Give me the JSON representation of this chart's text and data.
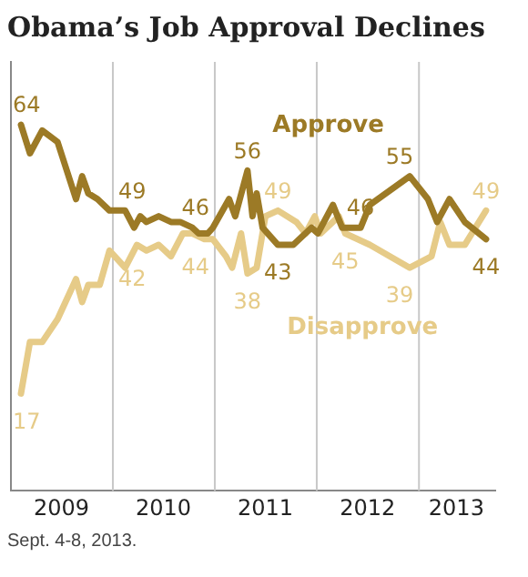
{
  "chart_data": {
    "type": "line",
    "title": "Obama’s Job Approval Declines",
    "xlim": [
      "2009-01-01",
      "2013-10-01"
    ],
    "ylim": [
      0,
      75
    ],
    "xticks": [
      {
        "value": "2009-07-01",
        "label": "2009"
      },
      {
        "value": "2010-07-01",
        "label": "2010"
      },
      {
        "value": "2011-07-01",
        "label": "2011"
      },
      {
        "value": "2012-07-01",
        "label": "2012"
      },
      {
        "value": "2013-05-15",
        "label": "2013"
      }
    ],
    "tick_labels": "x",
    "grid": false,
    "legend": false,
    "marker": "none",
    "line_style": "solid",
    "ref_lines": [
      {
        "axis": "x",
        "value": "2010-01-01",
        "color": "#c8c8c8"
      },
      {
        "axis": "x",
        "value": "2011-01-01",
        "color": "#c8c8c8"
      },
      {
        "axis": "x",
        "value": "2012-01-01",
        "color": "#c8c8c8"
      },
      {
        "axis": "x",
        "value": "2013-01-01",
        "color": "#c8c8c8"
      }
    ],
    "series": [
      {
        "name": "Approve",
        "color": "#9c7a26",
        "x": [
          "2009-02-06",
          "2009-03-10",
          "2009-04-23",
          "2009-06-17",
          "2009-08-22",
          "2009-09-13",
          "2009-10-05",
          "2009-11-07",
          "2009-12-20",
          "2010-02-14",
          "2010-03-18",
          "2010-04-09",
          "2010-05-01",
          "2010-06-14",
          "2010-07-28",
          "2010-08-30",
          "2010-10-13",
          "2010-11-04",
          "2010-12-07",
          "2010-12-25",
          "2011-02-21",
          "2011-03-15",
          "2011-04-28",
          "2011-05-16",
          "2011-05-31",
          "2011-06-21",
          "2011-08-15",
          "2011-10-09",
          "2011-12-13",
          "2012-01-05",
          "2012-02-28",
          "2012-04-01",
          "2012-06-06",
          "2012-07-09",
          "2012-11-29",
          "2013-02-02",
          "2013-03-07",
          "2013-04-20",
          "2013-06-14",
          "2013-08-29"
        ],
        "values": [
          64,
          59,
          63,
          61,
          51,
          55,
          52,
          51,
          49,
          49,
          46,
          48,
          47,
          48,
          47,
          47,
          46,
          45,
          45,
          46,
          51,
          48,
          56,
          48,
          52,
          46,
          43,
          43,
          46,
          45,
          50,
          46,
          46,
          50,
          55,
          51,
          47,
          51,
          47,
          44
        ],
        "value_labels": [
          "64",
          null,
          null,
          null,
          null,
          null,
          null,
          null,
          "49",
          null,
          null,
          null,
          null,
          null,
          null,
          null,
          null,
          null,
          null,
          "46",
          null,
          null,
          "56",
          null,
          null,
          null,
          "43",
          null,
          null,
          null,
          null,
          null,
          "46",
          null,
          "55",
          null,
          null,
          null,
          null,
          "44"
        ]
      },
      {
        "name": "Disapprove",
        "color": "#e6cb88",
        "x": [
          "2009-02-06",
          "2009-03-10",
          "2009-04-23",
          "2009-06-17",
          "2009-08-22",
          "2009-09-13",
          "2009-10-05",
          "2009-11-15",
          "2009-12-20",
          "2010-02-14",
          "2010-03-28",
          "2010-05-01",
          "2010-06-14",
          "2010-07-28",
          "2010-09-09",
          "2010-10-13",
          "2010-11-25",
          "2010-12-25",
          "2011-02-10",
          "2011-03-04",
          "2011-04-05",
          "2011-04-28",
          "2011-05-31",
          "2011-07-01",
          "2011-08-15",
          "2011-10-20",
          "2011-11-22",
          "2011-12-25",
          "2012-01-15",
          "2012-03-20",
          "2012-04-12",
          "2012-07-09",
          "2012-11-29",
          "2013-02-15",
          "2013-03-18",
          "2013-04-20",
          "2013-06-14",
          "2013-08-29"
        ],
        "values": [
          17,
          26,
          26,
          30,
          37,
          33,
          36,
          36,
          42,
          39,
          43,
          42,
          43,
          41,
          45,
          45,
          44,
          44,
          41,
          39,
          45,
          38,
          39,
          48,
          49,
          47,
          45,
          48,
          45,
          48,
          45,
          43,
          39,
          41,
          47,
          43,
          43,
          49
        ],
        "value_labels": [
          "17",
          null,
          null,
          null,
          null,
          null,
          null,
          null,
          "42",
          null,
          null,
          null,
          null,
          null,
          null,
          null,
          null,
          "44",
          null,
          null,
          null,
          "38",
          null,
          null,
          "49",
          null,
          null,
          null,
          null,
          null,
          "45",
          null,
          "39",
          null,
          null,
          null,
          null,
          "49"
        ]
      }
    ],
    "annotations": [
      "Sept. 4-8, 2013."
    ]
  }
}
